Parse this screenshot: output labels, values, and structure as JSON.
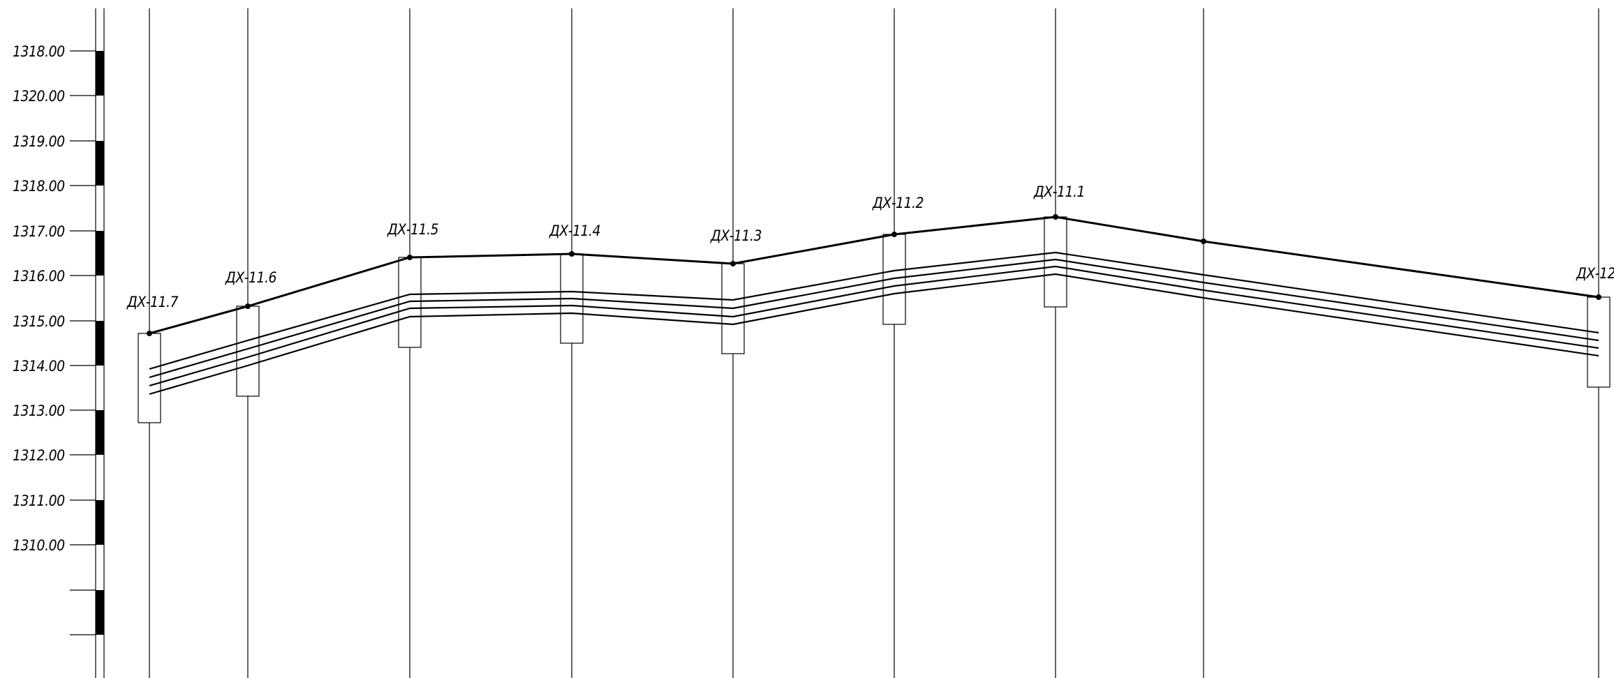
{
  "scale_labels": [
    "1318.00",
    "1320.00",
    "1319.00",
    "1318.00",
    "1317.00",
    "1316.00",
    "1315.00",
    "1314.00",
    "1313.00",
    "1312.00",
    "1311.00",
    "1310.00"
  ],
  "wells": [
    {
      "label": "ДХ-11.7"
    },
    {
      "label": "ДХ-11.6"
    },
    {
      "label": "ДХ-11.5"
    },
    {
      "label": "ДХ-11.4"
    },
    {
      "label": "ДХ-11.3"
    },
    {
      "label": "ДХ-11.2"
    },
    {
      "label": "ДХ-11.1"
    },
    {
      "label": ""
    },
    {
      "label": "ДХ-12"
    }
  ]
}
